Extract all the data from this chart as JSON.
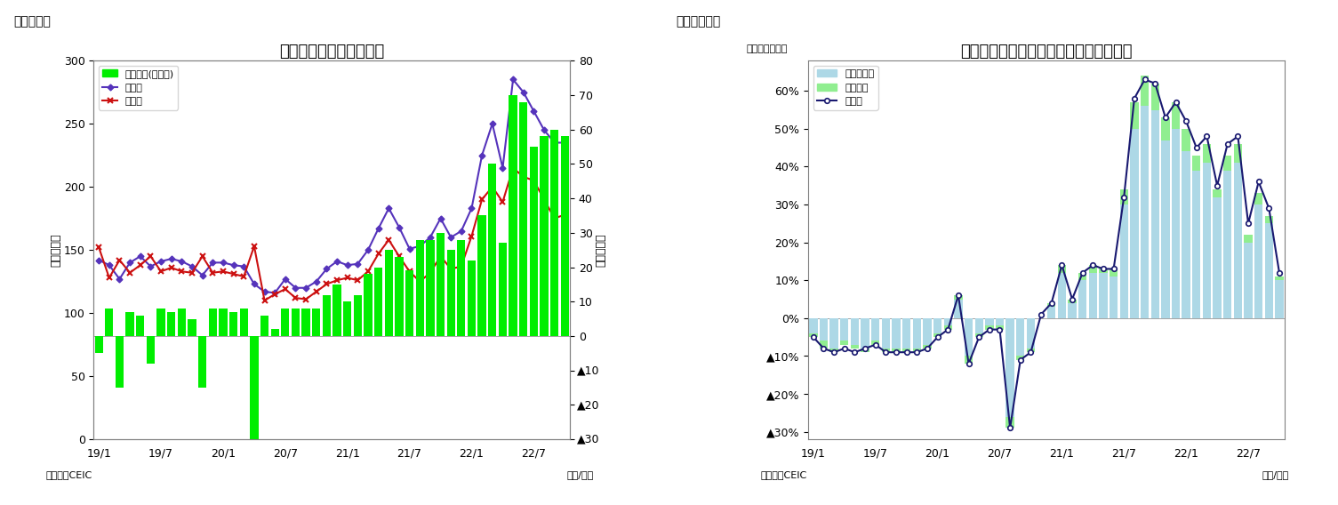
{
  "chart1": {
    "title": "インドネシア　貿易収支",
    "fig_label": "（図表９）",
    "ylabel_left": "（億ドル）",
    "ylabel_right": "（億ドル）",
    "xlabel": "（年/月）",
    "source": "（資料）CEIC",
    "xtick_labels": [
      "19/1",
      "19/7",
      "20/1",
      "20/7",
      "21/1",
      "21/7",
      "22/1",
      "22/7"
    ],
    "xtick_pos": [
      0,
      6,
      12,
      18,
      24,
      30,
      36,
      42
    ],
    "ylim_left": [
      0,
      300
    ],
    "ylim_right": [
      -30,
      80
    ],
    "yticks_left": [
      0,
      50,
      100,
      150,
      200,
      250,
      300
    ],
    "yticks_right": [
      0,
      10,
      20,
      30,
      40,
      50,
      60,
      70,
      80,
      -10,
      -20,
      -30
    ],
    "ytick_right_labels": [
      "0",
      "10",
      "20",
      "30",
      "40",
      "50",
      "60",
      "70",
      "80",
      "",
      "",
      ""
    ],
    "legend": [
      "貳易収支(右目盛)",
      "輸出額",
      "輸入額"
    ],
    "bar_color": "#00EE00",
    "line1_color": "#5533BB",
    "line2_color": "#CC1111",
    "trade_balance": [
      -5,
      8,
      -15,
      7,
      6,
      -8,
      8,
      7,
      8,
      5,
      -15,
      8,
      8,
      7,
      8,
      -30,
      6,
      2,
      8,
      8,
      8,
      8,
      12,
      15,
      10,
      12,
      18,
      20,
      25,
      23,
      19,
      28,
      28,
      30,
      25,
      28,
      22,
      35,
      50,
      27,
      70,
      68,
      55,
      58,
      60,
      58
    ],
    "exports": [
      142,
      138,
      127,
      140,
      145,
      137,
      141,
      143,
      141,
      137,
      130,
      140,
      140,
      138,
      137,
      123,
      117,
      116,
      127,
      120,
      120,
      125,
      135,
      141,
      138,
      139,
      150,
      167,
      183,
      168,
      151,
      153,
      160,
      175,
      160,
      165,
      183,
      225,
      250,
      215,
      285,
      275,
      260,
      245,
      235,
      235
    ],
    "imports": [
      152,
      128,
      142,
      132,
      138,
      145,
      133,
      136,
      133,
      132,
      145,
      132,
      133,
      131,
      129,
      153,
      110,
      115,
      119,
      112,
      111,
      117,
      123,
      126,
      128,
      126,
      133,
      147,
      158,
      145,
      133,
      125,
      132,
      145,
      135,
      137,
      161,
      190,
      200,
      188,
      215,
      208,
      205,
      190,
      175,
      178
    ]
  },
  "chart2": {
    "title": "インドネシア　輸出の伸び率（品目別）",
    "fig_label": "（図表１０）",
    "ylabel_left": "（前年同月比）",
    "xlabel": "（年/月）",
    "source": "（資料）CEIC",
    "xtick_labels": [
      "19/1",
      "19/7",
      "20/1",
      "20/7",
      "21/1",
      "21/7",
      "22/1",
      "22/7"
    ],
    "xtick_pos": [
      0,
      6,
      12,
      18,
      24,
      30,
      36,
      42
    ],
    "ylim": [
      -0.32,
      0.68
    ],
    "yticks": [
      0.6,
      0.5,
      0.4,
      0.3,
      0.2,
      0.1,
      0.0,
      -0.1,
      -0.2,
      -0.3
    ],
    "ytick_labels": [
      "60%",
      "50%",
      "40%",
      "30%",
      "20%",
      "10%",
      "0%",
      "▲10%",
      "▲20%",
      "▲30%"
    ],
    "legend": [
      "非石油ガス",
      "石油ガス",
      "輸出額"
    ],
    "bar1_color": "#ADD8E6",
    "bar2_color": "#90EE90",
    "line_color": "#191970",
    "non_oil_gas": [
      -0.04,
      -0.06,
      -0.08,
      -0.06,
      -0.07,
      -0.08,
      -0.06,
      -0.08,
      -0.08,
      -0.08,
      -0.08,
      -0.07,
      -0.04,
      -0.02,
      0.05,
      -0.1,
      -0.04,
      -0.02,
      -0.02,
      -0.26,
      -0.1,
      -0.08,
      0.0,
      0.03,
      0.12,
      0.04,
      0.1,
      0.12,
      0.12,
      0.11,
      0.3,
      0.5,
      0.56,
      0.55,
      0.47,
      0.5,
      0.44,
      0.39,
      0.41,
      0.32,
      0.39,
      0.41,
      0.2,
      0.3,
      0.25,
      0.1
    ],
    "oil_gas": [
      -0.01,
      -0.02,
      -0.01,
      -0.01,
      -0.01,
      -0.01,
      -0.01,
      -0.01,
      -0.01,
      -0.01,
      -0.01,
      -0.01,
      -0.01,
      -0.01,
      0.01,
      -0.02,
      -0.01,
      -0.01,
      -0.01,
      -0.03,
      -0.01,
      -0.01,
      0.0,
      0.01,
      0.02,
      0.01,
      0.02,
      0.02,
      0.01,
      0.02,
      0.04,
      0.07,
      0.08,
      0.07,
      0.06,
      0.07,
      0.06,
      0.04,
      0.05,
      0.02,
      0.04,
      0.05,
      0.02,
      0.03,
      0.02,
      0.01
    ],
    "export_growth": [
      -0.05,
      -0.08,
      -0.09,
      -0.08,
      -0.09,
      -0.08,
      -0.07,
      -0.09,
      -0.09,
      -0.09,
      -0.09,
      -0.08,
      -0.05,
      -0.03,
      0.06,
      -0.12,
      -0.05,
      -0.03,
      -0.03,
      -0.29,
      -0.11,
      -0.09,
      0.01,
      0.04,
      0.14,
      0.05,
      0.12,
      0.14,
      0.13,
      0.13,
      0.32,
      0.58,
      0.63,
      0.62,
      0.53,
      0.57,
      0.52,
      0.45,
      0.48,
      0.35,
      0.46,
      0.48,
      0.25,
      0.36,
      0.29,
      0.12
    ]
  }
}
